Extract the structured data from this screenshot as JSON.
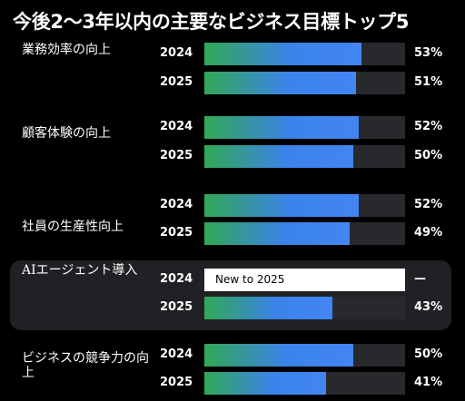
{
  "title": "今後2～3年以内の主要なビジネス目標トップ5",
  "chart_data": {
    "type": "bar",
    "orientation": "horizontal",
    "title": "今後2～3年以内の主要なビジネス目標トップ5",
    "series_names": [
      "2024",
      "2025"
    ],
    "xlim": [
      0,
      100
    ],
    "unit": "%",
    "categories": [
      {
        "label": "業務効率の向上",
        "bars": [
          {
            "year": "2024",
            "value": 53,
            "value_label": "53%"
          },
          {
            "year": "2025",
            "value": 51,
            "value_label": "51%"
          }
        ]
      },
      {
        "label": "顧客体験の向上",
        "bars": [
          {
            "year": "2024",
            "value": 52,
            "value_label": "52%"
          },
          {
            "year": "2025",
            "value": 50,
            "value_label": "50%"
          }
        ]
      },
      {
        "label": "社員の生産性向上",
        "bars": [
          {
            "year": "2024",
            "value": 52,
            "value_label": "52%"
          },
          {
            "year": "2025",
            "value": 49,
            "value_label": "49%"
          }
        ]
      },
      {
        "label": "AIエージェント導入",
        "highlighted": true,
        "bars": [
          {
            "year": "2024",
            "value": null,
            "note": "New to 2025",
            "value_label": "—"
          },
          {
            "year": "2025",
            "value": 43,
            "value_label": "43%"
          }
        ]
      },
      {
        "label": "ビジネスの競争力の向上",
        "bars": [
          {
            "year": "2024",
            "value": 50,
            "value_label": "50%"
          },
          {
            "year": "2025",
            "value": 41,
            "value_label": "41%"
          }
        ]
      }
    ],
    "colors": {
      "gradient_start": "#31a853",
      "gradient_end": "#4285f4",
      "track": "#27292d",
      "highlight_bg": "#202124"
    }
  }
}
